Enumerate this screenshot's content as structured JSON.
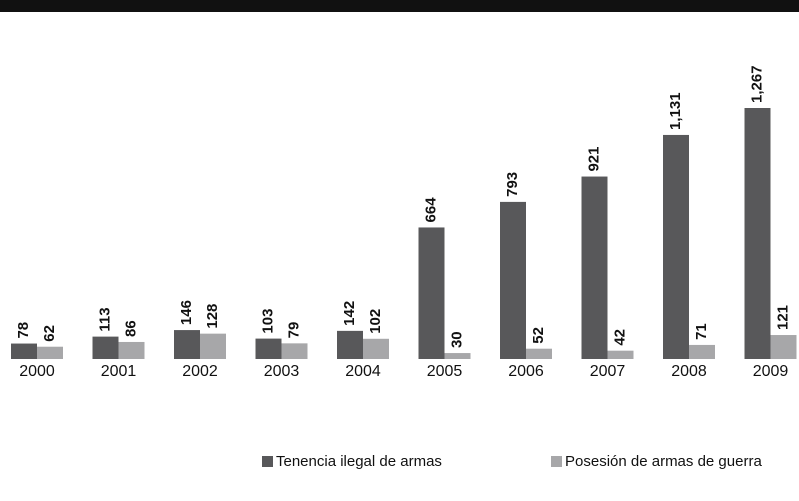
{
  "chart_data": {
    "type": "bar",
    "categories": [
      "2000",
      "2001",
      "2002",
      "2003",
      "2004",
      "2005",
      "2006",
      "2007",
      "2008",
      "2009"
    ],
    "series": [
      {
        "name": "Tenencia ilegal de armas",
        "color": "#58585a",
        "values": [
          78,
          113,
          146,
          103,
          142,
          664,
          793,
          921,
          1131,
          1267
        ],
        "value_labels": [
          "78",
          "113",
          "146",
          "103",
          "142",
          "664",
          "793",
          "921",
          "1,131",
          "1,267"
        ]
      },
      {
        "name": "Posesión de armas de guerra",
        "color": "#a7a7a9",
        "values": [
          62,
          86,
          128,
          79,
          102,
          30,
          52,
          42,
          71,
          121
        ]
      }
    ]
  }
}
